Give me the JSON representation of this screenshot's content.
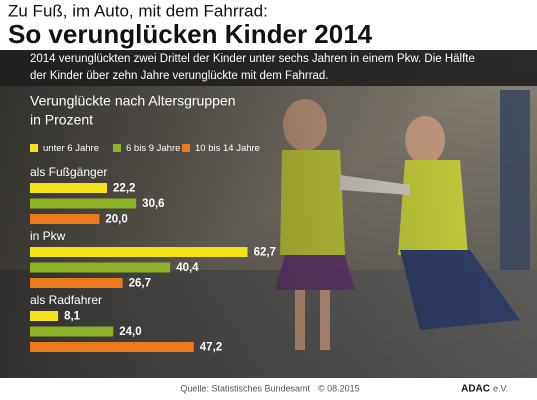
{
  "header": {
    "kicker": "Zu Fuß, im Auto, mit dem Fahrrad:",
    "title": "So verunglücken Kinder 2014",
    "intro": [
      "2014 verunglückten zwei Drittel der Kinder unter sechs Jahren in einem Pkw. Die Hälfte",
      "der Kinder über zehn Jahre verunglückte mit dem Fahrrad."
    ]
  },
  "chart_data": {
    "type": "bar",
    "orientation": "horizontal",
    "title": [
      "Verunglückte nach Altersgruppen",
      "in Prozent"
    ],
    "categories": [
      "als Fußgänger",
      "in Pkw",
      "als Radfahrer"
    ],
    "series": [
      {
        "name": "unter 6 Jahre",
        "color": "#f5e31a",
        "values": [
          22.2,
          62.7,
          8.1
        ],
        "value_labels": [
          "22,2",
          "62,7",
          "8,1"
        ]
      },
      {
        "name": "6 bis 9 Jahre",
        "color": "#8cb326",
        "values": [
          30.6,
          40.4,
          24.0
        ],
        "value_labels": [
          "30,6",
          "40,4",
          "24,0"
        ]
      },
      {
        "name": "10 bis 14 Jahre",
        "color": "#ec7a1c",
        "values": [
          20.0,
          26.7,
          47.2
        ],
        "value_labels": [
          "20,0",
          "26,7",
          "47,2"
        ]
      }
    ]
  },
  "footer": {
    "source": "Quelle:  Statistisches Bundesamt",
    "copyright": "© 08.2015",
    "brand": "ADAC",
    "brand_suffix": "e.V."
  }
}
